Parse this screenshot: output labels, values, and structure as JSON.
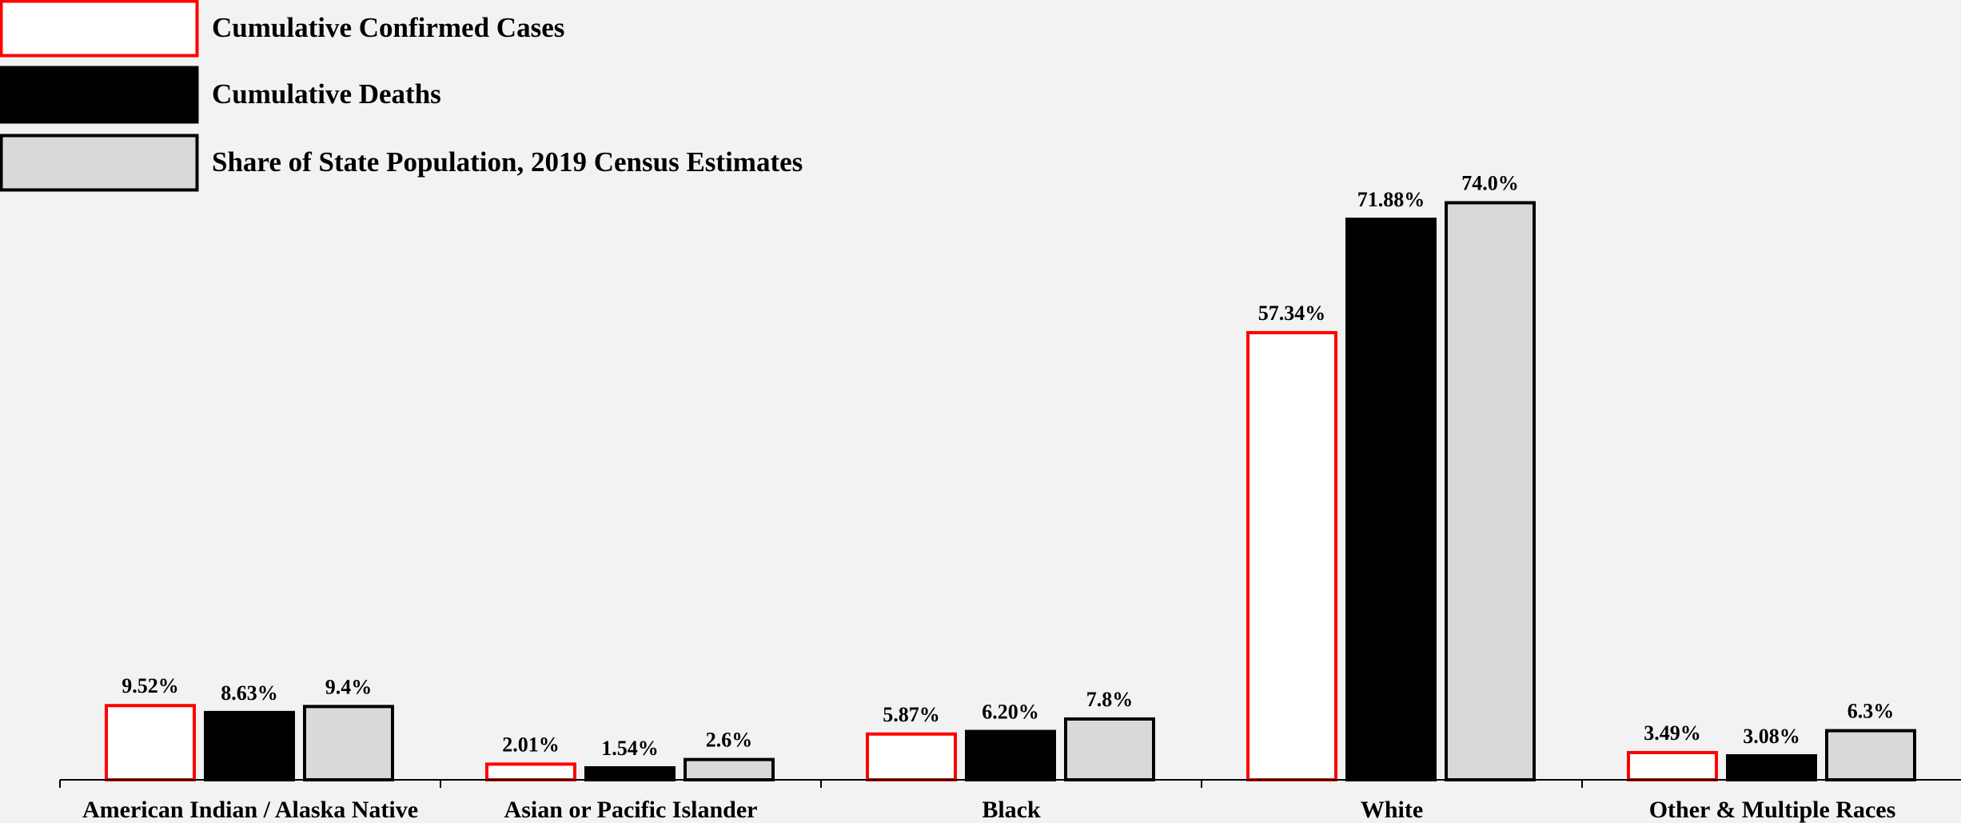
{
  "chart_data": {
    "type": "bar",
    "title": "",
    "xlabel": "",
    "ylabel": "",
    "ylim": [
      0,
      80
    ],
    "grid": false,
    "legend_position": "top-left",
    "categories": [
      "American Indian / Alaska Native",
      "Asian or Pacific Islander",
      "Black",
      "White",
      "Other & Multiple Races"
    ],
    "series": [
      {
        "name": "Cumulative Confirmed Cases",
        "values": [
          9.52,
          2.01,
          5.87,
          57.34,
          3.49
        ],
        "labels": [
          "9.52%",
          "2.01%",
          "5.87%",
          "57.34%",
          "3.49%"
        ],
        "fill": "#ffffff",
        "stroke": "#ff0000"
      },
      {
        "name": "Cumulative Deaths",
        "values": [
          8.63,
          1.54,
          6.2,
          71.88,
          3.08
        ],
        "labels": [
          "8.63%",
          "1.54%",
          "6.20%",
          "71.88%",
          "3.08%"
        ],
        "fill": "#000000",
        "stroke": "#000000"
      },
      {
        "name": "Share of State Population, 2019 Census Estimates",
        "values": [
          9.4,
          2.6,
          7.8,
          74.0,
          6.3
        ],
        "labels": [
          "9.4%",
          "2.6%",
          "7.8%",
          "74.0%",
          "6.3%"
        ],
        "fill": "#d9d9d9",
        "stroke": "#000000"
      }
    ]
  }
}
